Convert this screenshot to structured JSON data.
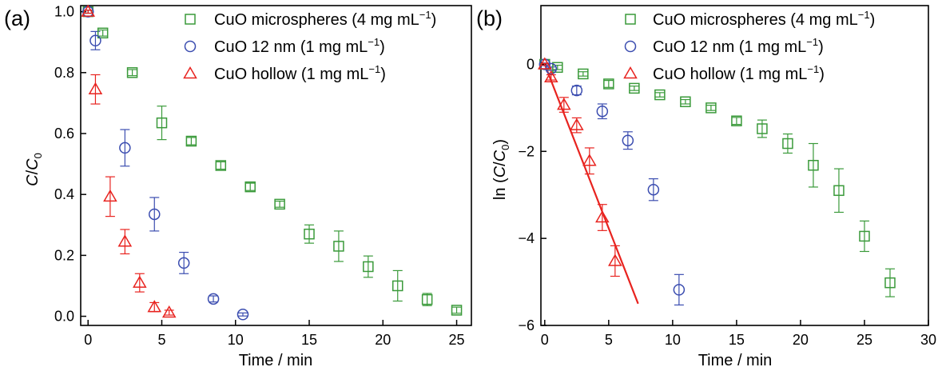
{
  "colors": {
    "green": "#3a9a3a",
    "blue": "#3b4db0",
    "red": "#e8231f",
    "axis": "#000000"
  },
  "chart_data": [
    {
      "panel_label": "(a)",
      "type": "scatter",
      "xlabel": "Time / min",
      "ylabel_main": "C",
      "ylabel_sep": "/",
      "ylabel_sub_base": "C",
      "ylabel_sub": "0",
      "xlim": [
        -0.5,
        26
      ],
      "ylim": [
        -0.03,
        1.02
      ],
      "xticks": [
        0,
        5,
        10,
        15,
        20,
        25
      ],
      "yticks": [
        0.0,
        0.2,
        0.4,
        0.6,
        0.8,
        1.0
      ],
      "ytick_labels": [
        "0.0",
        "0.2",
        "0.4",
        "0.6",
        "0.8",
        "1.0"
      ],
      "legend_position": "top-right",
      "series": [
        {
          "name": "CuO microspheres (4 mg mL",
          "unit_sup": "−1",
          "name_end": ")",
          "marker": "square",
          "color": "green",
          "x": [
            0,
            1,
            3,
            5,
            7,
            9,
            11,
            13,
            15,
            17,
            19,
            21,
            23,
            25
          ],
          "y": [
            1.0,
            0.93,
            0.8,
            0.635,
            0.575,
            0.495,
            0.425,
            0.368,
            0.27,
            0.23,
            0.163,
            0.1,
            0.055,
            0.02
          ],
          "err": [
            0.005,
            0.01,
            0.01,
            0.055,
            0.012,
            0.012,
            0.012,
            0.01,
            0.03,
            0.05,
            0.035,
            0.05,
            0.02,
            0.01
          ]
        },
        {
          "name": "CuO 12 nm (1 mg mL",
          "unit_sup": "−1",
          "name_end": ")",
          "marker": "circle",
          "color": "blue",
          "x": [
            0,
            0.5,
            2.5,
            4.5,
            6.5,
            8.5,
            10.5
          ],
          "y": [
            1.0,
            0.905,
            0.553,
            0.335,
            0.175,
            0.057,
            0.006
          ],
          "err": [
            0.005,
            0.03,
            0.06,
            0.055,
            0.035,
            0.01,
            0.005
          ]
        },
        {
          "name": "CuO hollow (1 mg mL",
          "unit_sup": "−1",
          "name_end": ")",
          "marker": "triangle",
          "color": "red",
          "x": [
            0,
            0.5,
            1.5,
            2.5,
            3.5,
            4.5,
            5.5
          ],
          "y": [
            1.0,
            0.745,
            0.393,
            0.245,
            0.11,
            0.03,
            0.012
          ],
          "err": [
            0.005,
            0.048,
            0.065,
            0.04,
            0.03,
            0.015,
            0.008
          ]
        }
      ]
    },
    {
      "panel_label": "(b)",
      "type": "scatter",
      "xlabel": "Time / min",
      "ylabel_main": "ln (",
      "ylabel_c": "C",
      "ylabel_sep": "/",
      "ylabel_sub_base": "C",
      "ylabel_sub": "0",
      "ylabel_end": ")",
      "xlim": [
        -0.3,
        30
      ],
      "ylim": [
        -6,
        1.35
      ],
      "xticks": [
        0,
        5,
        10,
        15,
        20,
        25,
        30
      ],
      "yticks": [
        -6,
        -4,
        -2,
        0
      ],
      "ytick_labels": [
        "−6",
        "−4",
        "−2",
        "0"
      ],
      "legend_position": "top-right",
      "fit_line": {
        "color": "red",
        "x": [
          0,
          7.3
        ],
        "y": [
          0,
          -5.5
        ]
      },
      "series": [
        {
          "name": "CuO microspheres (4 mg mL",
          "unit_sup": "−1",
          "name_end": ")",
          "marker": "square",
          "color": "green",
          "x": [
            0,
            1,
            3,
            5,
            7,
            9,
            11,
            13,
            15,
            17,
            19,
            21,
            23,
            25,
            27
          ],
          "y": [
            0,
            -0.07,
            -0.22,
            -0.45,
            -0.55,
            -0.7,
            -0.86,
            -1.0,
            -1.3,
            -1.48,
            -1.82,
            -2.32,
            -2.9,
            -3.95,
            -5.02
          ],
          "err": [
            0.02,
            0.05,
            0.05,
            0.08,
            0.05,
            0.05,
            0.05,
            0.06,
            0.08,
            0.2,
            0.22,
            0.5,
            0.5,
            0.35,
            0.32
          ]
        },
        {
          "name": "CuO 12 nm (1 mg mL",
          "unit_sup": "−1",
          "name_end": ")",
          "marker": "circle",
          "color": "blue",
          "x": [
            0,
            0.5,
            2.5,
            4.5,
            6.5,
            8.5,
            10.5
          ],
          "y": [
            0,
            -0.1,
            -0.6,
            -1.08,
            -1.75,
            -2.88,
            -5.18
          ],
          "err": [
            0.03,
            0.04,
            0.1,
            0.17,
            0.2,
            0.25,
            0.35
          ]
        },
        {
          "name": "CuO hollow (1 mg mL",
          "unit_sup": "−1",
          "name_end": ")",
          "marker": "triangle",
          "color": "red",
          "x": [
            0,
            0.5,
            1.5,
            2.5,
            3.5,
            4.5,
            5.5
          ],
          "y": [
            0,
            -0.3,
            -0.93,
            -1.4,
            -2.22,
            -3.52,
            -4.52
          ],
          "err": [
            0.02,
            0.06,
            0.17,
            0.17,
            0.3,
            0.3,
            0.35
          ]
        }
      ]
    }
  ]
}
